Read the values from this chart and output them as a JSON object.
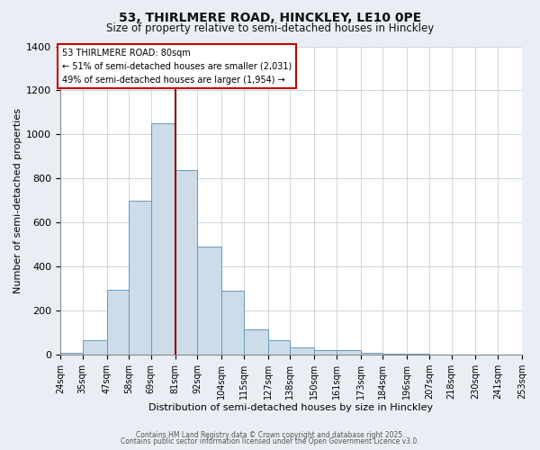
{
  "title1": "53, THIRLMERE ROAD, HINCKLEY, LE10 0PE",
  "title2": "Size of property relative to semi-detached houses in Hinckley",
  "xlabel": "Distribution of semi-detached houses by size in Hinckley",
  "ylabel": "Number of semi-detached properties",
  "bins": [
    24,
    35,
    47,
    58,
    69,
    81,
    92,
    104,
    115,
    127,
    138,
    150,
    161,
    173,
    184,
    196,
    207,
    218,
    230,
    241,
    253
  ],
  "counts": [
    10,
    65,
    295,
    700,
    1050,
    840,
    490,
    290,
    115,
    65,
    35,
    20,
    20,
    10,
    5,
    5,
    2,
    2,
    0,
    0
  ],
  "bar_color": "#ccdce8",
  "bar_edge_color": "#6699bb",
  "property_line_x": 81,
  "property_line_color": "#8b0000",
  "annotation_box_color": "#ffffff",
  "annotation_box_edge_color": "#cc0000",
  "annotation_title": "53 THIRLMERE ROAD: 80sqm",
  "annotation_line1": "← 51% of semi-detached houses are smaller (2,031)",
  "annotation_line2": "49% of semi-detached houses are larger (1,954) →",
  "ylim": [
    0,
    1400
  ],
  "yticks": [
    0,
    200,
    400,
    600,
    800,
    1000,
    1200,
    1400
  ],
  "footer1": "Contains HM Land Registry data © Crown copyright and database right 2025.",
  "footer2": "Contains public sector information licensed under the Open Government Licence v3.0.",
  "background_color": "#e8eef4",
  "plot_background_color": "#ffffff"
}
